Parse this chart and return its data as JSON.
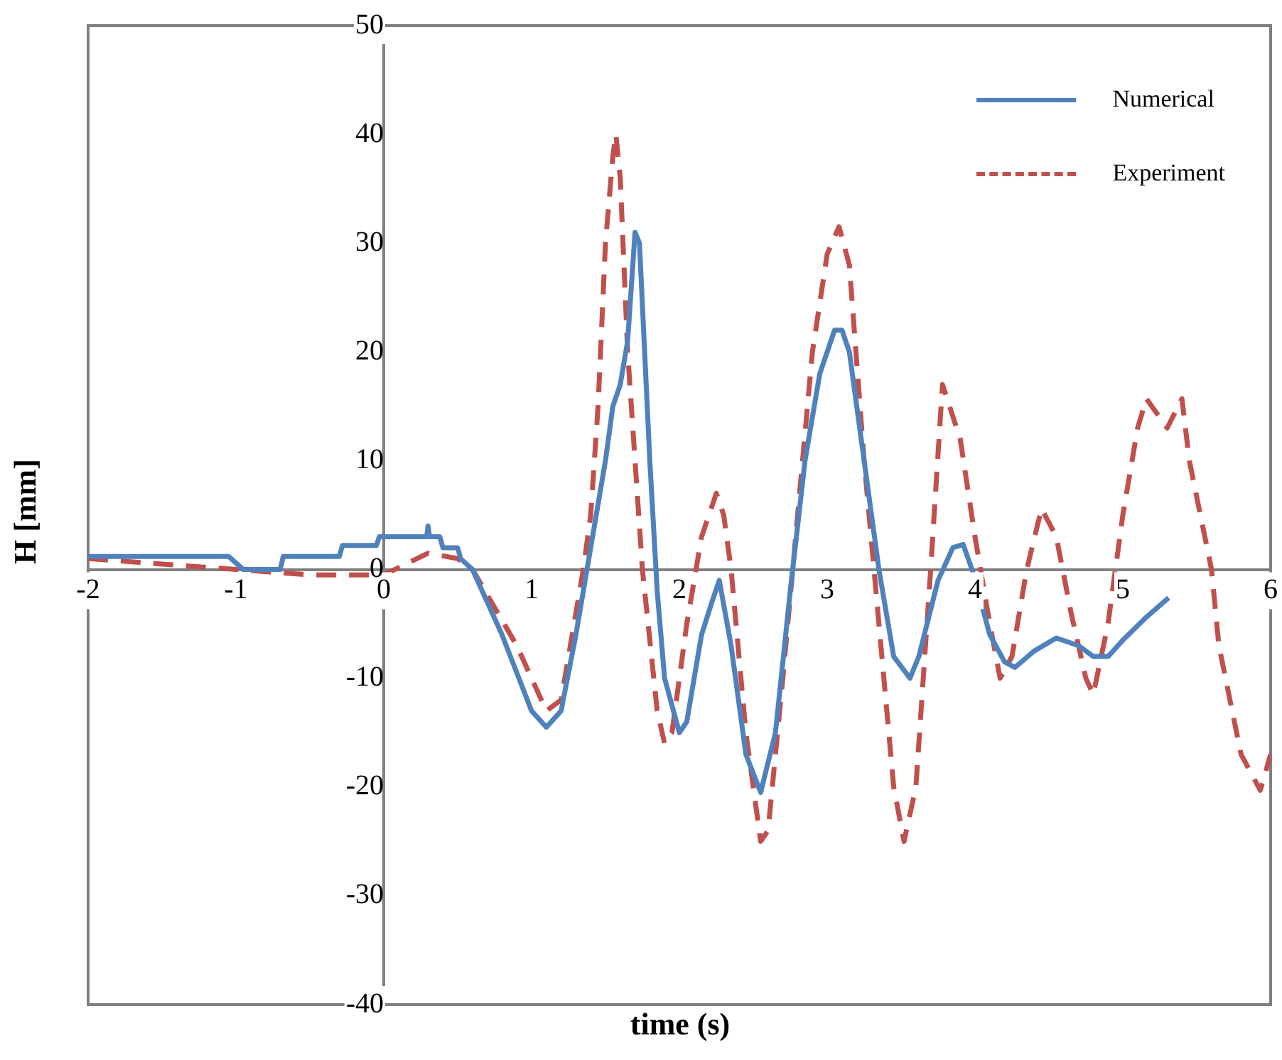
{
  "chart_data": {
    "type": "line",
    "xlabel": "time (s)",
    "ylabel": "H [mm]",
    "xlim": [
      -2,
      6
    ],
    "xticks": [
      -2,
      -1,
      0,
      1,
      2,
      3,
      4,
      5,
      6
    ],
    "ylim": [
      -40,
      50
    ],
    "yticks": [
      -40,
      -30,
      -20,
      -10,
      0,
      10,
      20,
      30,
      40,
      50
    ],
    "grid": false,
    "legend": "top right",
    "marker": "none",
    "series": [
      {
        "name": "Numerical",
        "color": "#4f81bd",
        "line_style": "solid",
        "x": [
          -2,
          -1.05,
          -0.95,
          -0.7,
          -0.68,
          -0.3,
          -0.28,
          -0.05,
          -0.03,
          0.29,
          0.3,
          0.31,
          0.38,
          0.4,
          0.5,
          0.52,
          0.6,
          0.8,
          1,
          1.1,
          1.2,
          1.3,
          1.4,
          1.5,
          1.55,
          1.6,
          1.65,
          1.7,
          1.73,
          1.8,
          1.85,
          1.9,
          2,
          2.05,
          2.15,
          2.22,
          2.27,
          2.35,
          2.45,
          2.55,
          2.65,
          2.75,
          2.85,
          2.95,
          3.05,
          3.1,
          3.15,
          3.25,
          3.35,
          3.45,
          3.56,
          3.62,
          3.75,
          3.85,
          3.92,
          3.98,
          4.1,
          4.2,
          4.27,
          4.4,
          4.55,
          4.7,
          4.8,
          4.9,
          5,
          5.15,
          5.31
        ],
        "values": [
          1.2,
          1.2,
          0,
          0,
          1.2,
          1.2,
          2.2,
          2.2,
          3,
          3,
          4,
          3,
          3,
          2,
          2,
          1,
          0,
          -6,
          -13,
          -14.5,
          -13,
          -6,
          2,
          10,
          15,
          17,
          21,
          31,
          30,
          10,
          -2,
          -10,
          -15,
          -14,
          -6,
          -3,
          -1,
          -7,
          -17,
          -20.5,
          -15,
          -2,
          10,
          18,
          22,
          22,
          20,
          10,
          0,
          -8,
          -10,
          -8,
          -1,
          2,
          2.3,
          0,
          -6,
          -8.5,
          -9,
          -7.5,
          -6.3,
          -7,
          -8,
          -8,
          -6.5,
          -4.5,
          -2.6
        ]
      },
      {
        "name": "Experiment",
        "color": "#c0504d",
        "line_style": "dashed",
        "x": [
          -2,
          -1.5,
          -1,
          -0.5,
          0,
          0.3,
          0.5,
          0.6,
          0.9,
          1.1,
          1.2,
          1.35,
          1.4,
          1.45,
          1.5,
          1.55,
          1.57,
          1.6,
          1.65,
          1.75,
          1.85,
          1.9,
          1.95,
          2.05,
          2.15,
          2.25,
          2.3,
          2.35,
          2.45,
          2.55,
          2.6,
          2.7,
          2.8,
          2.9,
          3,
          3.08,
          3.15,
          3.25,
          3.35,
          3.45,
          3.52,
          3.6,
          3.7,
          3.78,
          3.9,
          4,
          4.1,
          4.17,
          4.25,
          4.35,
          4.45,
          4.55,
          4.65,
          4.75,
          4.8,
          4.9,
          5,
          5.1,
          5.16,
          5.3,
          5.4,
          5.45,
          5.6,
          5.65,
          5.8,
          5.93,
          6
        ],
        "values": [
          1,
          0.5,
          0,
          -0.5,
          -0.5,
          1.5,
          1,
          0,
          -7,
          -13,
          -12,
          0,
          5,
          15,
          30,
          38,
          40,
          36,
          20,
          0,
          -13,
          -16,
          -15,
          -5,
          3,
          7,
          5,
          0,
          -15,
          -25,
          -24,
          -10,
          5,
          20,
          29,
          31.5,
          28,
          10,
          -5,
          -20,
          -25,
          -20,
          0,
          17,
          12,
          3,
          -5,
          -10,
          -8,
          0,
          5.6,
          3,
          -4,
          -10,
          -11.5,
          -5,
          5,
          13,
          15.7,
          13,
          15.7,
          10,
          0,
          -7,
          -17,
          -20.3,
          -17
        ]
      }
    ]
  }
}
